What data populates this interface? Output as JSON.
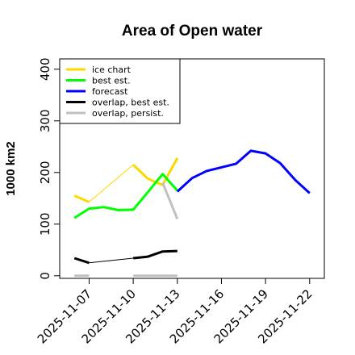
{
  "chart_data": {
    "type": "line",
    "title": "Area of Open water",
    "ylabel": "1000 km2",
    "xlabel": "",
    "ylim": [
      -5,
      420
    ],
    "yticks": [
      0,
      100,
      200,
      300,
      400
    ],
    "x_range": [
      "2025-11-05",
      "2025-11-23"
    ],
    "x_ticks": [
      {
        "date": "2025-11-07",
        "label": "2025-11-07",
        "color": "#000000"
      },
      {
        "date": "2025-11-10",
        "label": "2025-11-10",
        "color": "#000000"
      },
      {
        "date": "2025-11-13",
        "label": "2025-11-13",
        "color": "#228b22"
      },
      {
        "date": "2025-11-16",
        "label": "2025-11-16",
        "color": "#000000"
      },
      {
        "date": "2025-11-19",
        "label": "2025-11-19",
        "color": "#000000"
      },
      {
        "date": "2025-11-22",
        "label": "2025-11-22",
        "color": "#000000"
      }
    ],
    "legend_position": "top-left",
    "series": [
      {
        "name": "ice chart",
        "color": "#ffd700",
        "width": 3,
        "points": [
          {
            "x": "2025-11-06",
            "y": 155,
            "seg": 0
          },
          {
            "x": "2025-11-07",
            "y": 143,
            "seg": 0
          },
          {
            "x": "2025-11-07",
            "y": 143,
            "seg": 1,
            "thin": true
          },
          {
            "x": "2025-11-10",
            "y": 215,
            "seg": 1,
            "thin": true
          },
          {
            "x": "2025-11-10",
            "y": 215,
            "seg": 2
          },
          {
            "x": "2025-11-11",
            "y": 188,
            "seg": 2
          },
          {
            "x": "2025-11-12",
            "y": 176,
            "seg": 2
          },
          {
            "x": "2025-11-13",
            "y": 228,
            "seg": 2
          }
        ]
      },
      {
        "name": "best est.",
        "color": "#00ff00",
        "width": 3,
        "points": [
          {
            "x": "2025-11-06",
            "y": 112
          },
          {
            "x": "2025-11-07",
            "y": 130
          },
          {
            "x": "2025-11-08",
            "y": 133
          },
          {
            "x": "2025-11-09",
            "y": 127
          },
          {
            "x": "2025-11-10",
            "y": 128
          },
          {
            "x": "2025-11-11",
            "y": 162
          },
          {
            "x": "2025-11-12",
            "y": 197
          },
          {
            "x": "2025-11-13",
            "y": 165
          }
        ]
      },
      {
        "name": "forecast",
        "color": "#0000ff",
        "width": 3,
        "points": [
          {
            "x": "2025-11-13",
            "y": 163
          },
          {
            "x": "2025-11-14",
            "y": 189
          },
          {
            "x": "2025-11-15",
            "y": 203
          },
          {
            "x": "2025-11-16",
            "y": 210
          },
          {
            "x": "2025-11-17",
            "y": 217
          },
          {
            "x": "2025-11-18",
            "y": 242
          },
          {
            "x": "2025-11-19",
            "y": 237
          },
          {
            "x": "2025-11-20",
            "y": 218
          },
          {
            "x": "2025-11-21",
            "y": 186
          },
          {
            "x": "2025-11-22",
            "y": 160
          }
        ]
      },
      {
        "name": "overlap, best est.",
        "color": "#000000",
        "width": 3,
        "points": [
          {
            "x": "2025-11-06",
            "y": 34,
            "seg": 0
          },
          {
            "x": "2025-11-07",
            "y": 25,
            "seg": 0
          },
          {
            "x": "2025-11-07",
            "y": 25,
            "seg": 1,
            "thin": true
          },
          {
            "x": "2025-11-10",
            "y": 34,
            "seg": 1,
            "thin": true
          },
          {
            "x": "2025-11-10",
            "y": 34,
            "seg": 2
          },
          {
            "x": "2025-11-11",
            "y": 37,
            "seg": 2
          },
          {
            "x": "2025-11-12",
            "y": 47,
            "seg": 2
          },
          {
            "x": "2025-11-13",
            "y": 48,
            "seg": 2
          }
        ]
      },
      {
        "name": "overlap, persist.",
        "color": "#c0c0c0",
        "width": 3,
        "points": [
          {
            "x": "2025-11-06",
            "y": 0,
            "seg": 0
          },
          {
            "x": "2025-11-07",
            "y": 0,
            "seg": 0
          },
          {
            "x": "2025-11-10",
            "y": 0,
            "seg": 1
          },
          {
            "x": "2025-11-11",
            "y": 0,
            "seg": 1
          },
          {
            "x": "2025-11-12",
            "y": 0,
            "seg": 1
          },
          {
            "x": "2025-11-13",
            "y": 0,
            "seg": 1
          },
          {
            "x": "2025-11-12",
            "y": 180,
            "seg": 2
          },
          {
            "x": "2025-11-13",
            "y": 110,
            "seg": 2
          }
        ]
      }
    ]
  }
}
